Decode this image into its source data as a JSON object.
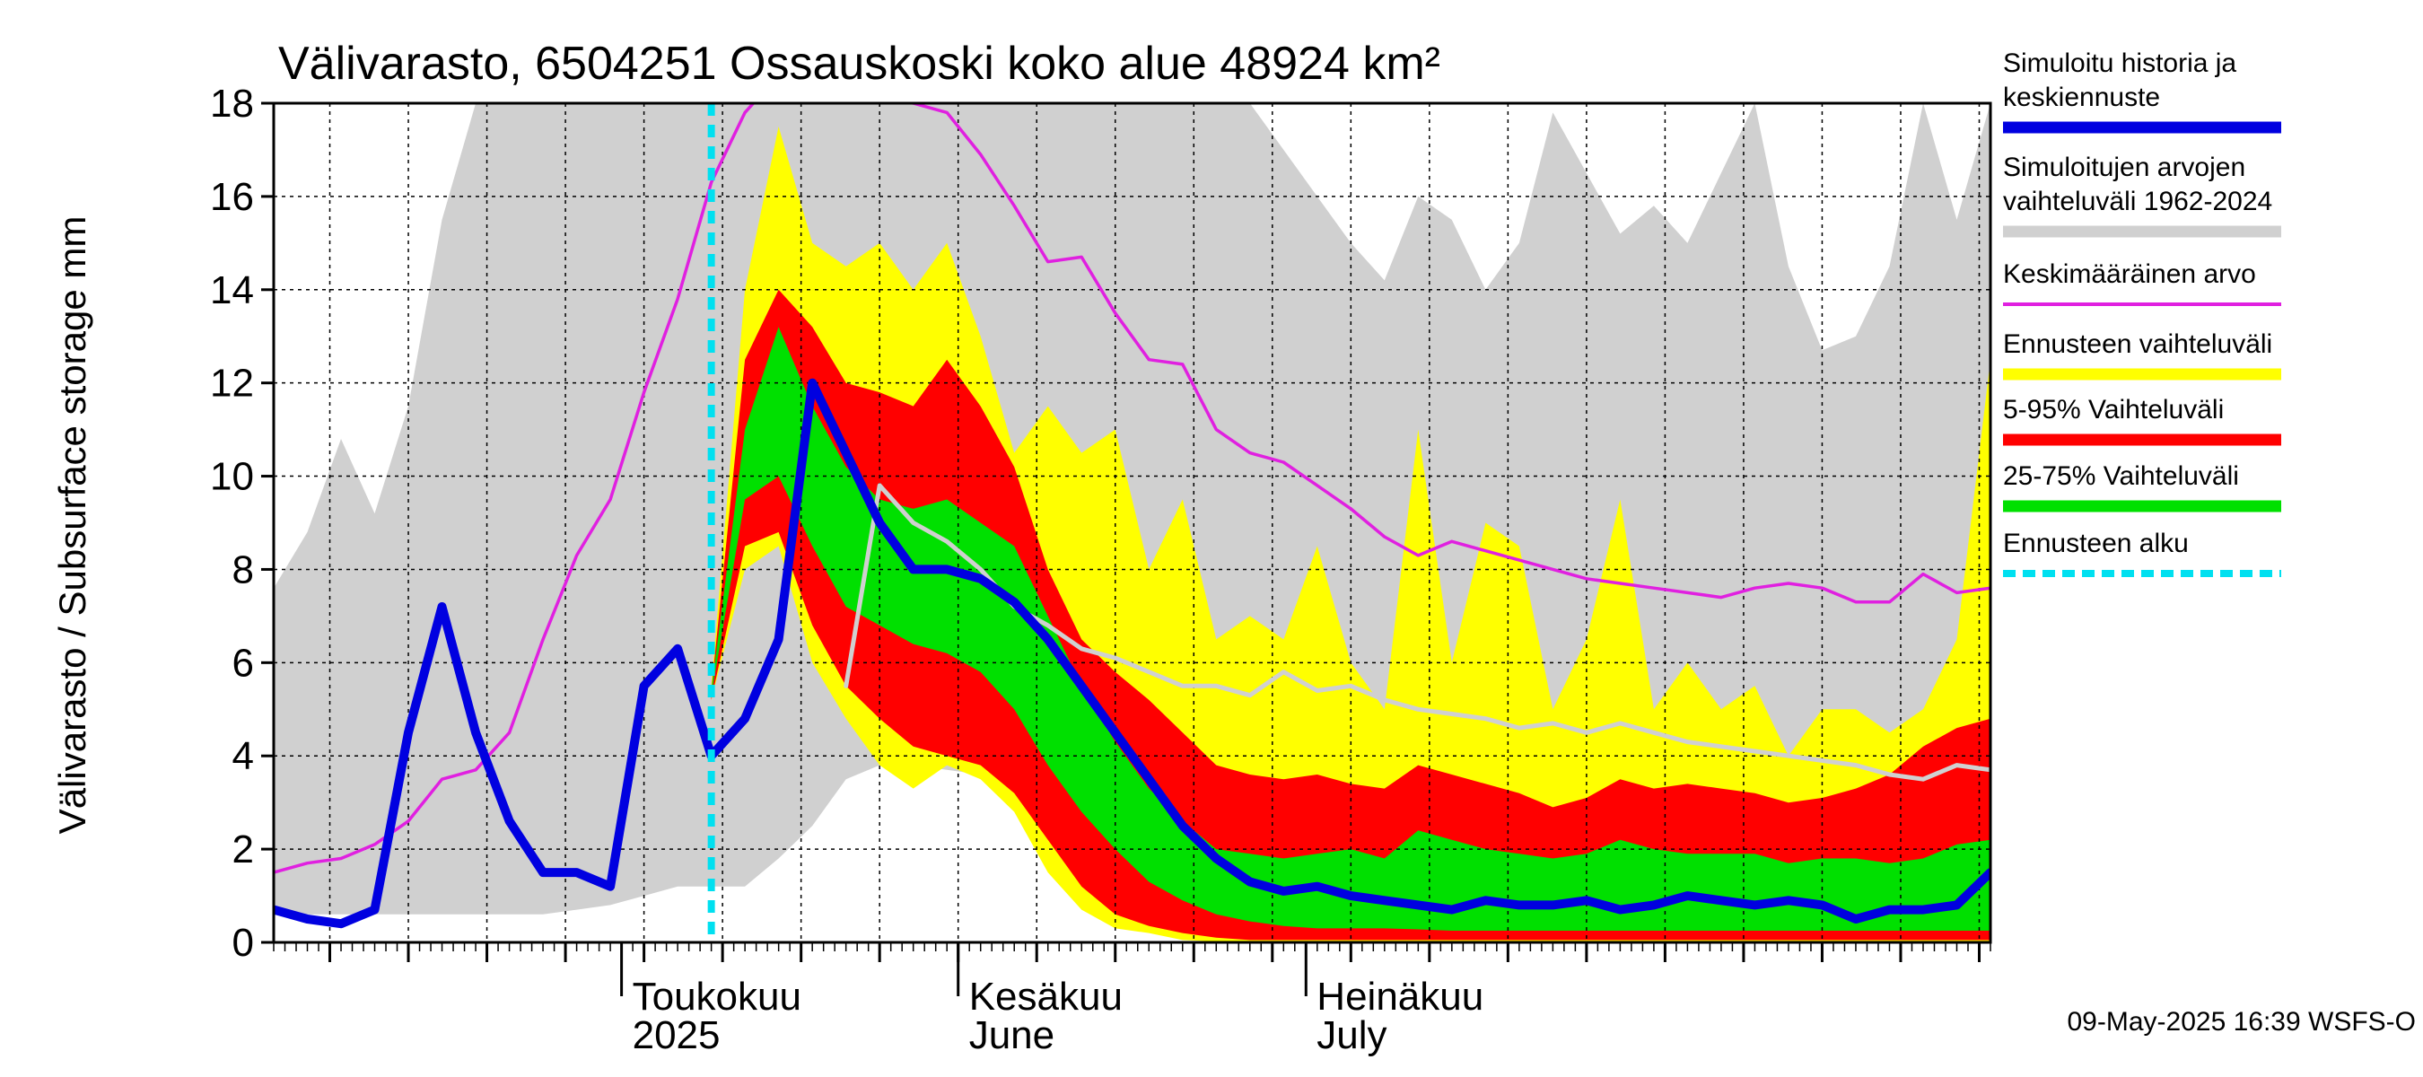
{
  "chart_data": {
    "type": "area",
    "title": "Välivarasto, 6504251 Ossauskoski koko alue 48924 km²",
    "ylabel": "Välivarasto / Subsurface storage  mm",
    "xlabel": "",
    "ylim": [
      0,
      18
    ],
    "xlim": [
      "2025-03-01",
      "2025-08-01"
    ],
    "y_ticks": [
      "0",
      "2",
      "4",
      "6",
      "8",
      "10",
      "12",
      "14",
      "16",
      "18"
    ],
    "x_month_labels": [
      {
        "date": "2025-04-01",
        "line1": "Toukokuu",
        "line2": "2025"
      },
      {
        "date": "2025-05-01",
        "line1": "Kesäkuu",
        "line2": "June"
      },
      {
        "date": "2025-06-01",
        "line1": "Heinäkuu",
        "line2": "July"
      }
    ],
    "forecast_start": "2025-04-09",
    "grid": true,
    "legend_position": "right",
    "legend": [
      {
        "line1": "Simuloitu historia ja",
        "line2": "keskiennuste",
        "color": "#0000e0",
        "style": "thick"
      },
      {
        "line1": "Simuloitujen arvojen",
        "line2": "vaihteluväli 1962-2024",
        "color": "#d0d0d0",
        "style": "thick"
      },
      {
        "line1": "Keskimääräinen arvo",
        "line2": "",
        "color": "#e020e0",
        "style": "thin"
      },
      {
        "line1": "Ennusteen vaihteluväli",
        "line2": "",
        "color": "#ffff00",
        "style": "thick"
      },
      {
        "line1": "5-95% Vaihteluväli",
        "line2": "",
        "color": "#ff0000",
        "style": "thick"
      },
      {
        "line1": "25-75% Vaihteluväli",
        "line2": "",
        "color": "#00e000",
        "style": "thick"
      },
      {
        "line1": "Ennusteen alku",
        "line2": "",
        "color": "#00e0f0",
        "style": "dashed"
      }
    ],
    "colors": {
      "history_range": "#d0d0d0",
      "forecast_range": "#ffff00",
      "p5_95": "#ff0000",
      "p25_75": "#00e000",
      "mean_history": "#e020e0",
      "simulated": "#0000e0",
      "median_history": "#d0d0d0",
      "forecast_start": "#00e0f0"
    },
    "series": {
      "history_range": {
        "dates": [
          "2025-03-01",
          "2025-03-04",
          "2025-03-07",
          "2025-03-10",
          "2025-03-13",
          "2025-03-16",
          "2025-03-19",
          "2025-03-22",
          "2025-03-25",
          "2025-03-28",
          "2025-03-31",
          "2025-04-03",
          "2025-04-06",
          "2025-04-09",
          "2025-04-12",
          "2025-04-15",
          "2025-04-18",
          "2025-04-21",
          "2025-04-24",
          "2025-04-27",
          "2025-04-30",
          "2025-05-03",
          "2025-05-06",
          "2025-05-09",
          "2025-05-12",
          "2025-05-15",
          "2025-05-18",
          "2025-05-21",
          "2025-05-24",
          "2025-05-27",
          "2025-05-30",
          "2025-06-02",
          "2025-06-05",
          "2025-06-08",
          "2025-06-11",
          "2025-06-14",
          "2025-06-17",
          "2025-06-20",
          "2025-06-23",
          "2025-06-26",
          "2025-06-29",
          "2025-07-02",
          "2025-07-05",
          "2025-07-08",
          "2025-07-11",
          "2025-07-14",
          "2025-07-17",
          "2025-07-20",
          "2025-07-23",
          "2025-07-26",
          "2025-07-29",
          "2025-08-01"
        ],
        "lower": [
          0.6,
          0.6,
          0.6,
          0.6,
          0.6,
          0.6,
          0.6,
          0.6,
          0.6,
          0.7,
          0.8,
          1.0,
          1.2,
          1.2,
          1.2,
          1.8,
          2.5,
          3.5,
          3.8,
          3.8,
          3.7,
          3.6,
          3.0,
          2.0,
          1.0,
          0.6,
          0.3,
          0.2,
          0.1,
          0.1,
          0.1,
          0.1,
          0.05,
          0.05,
          0.05,
          0.05,
          0.05,
          0.05,
          0.05,
          0.05,
          0.05,
          0.05,
          0.05,
          0.05,
          0.05,
          0.05,
          0.05,
          0.05,
          0.05,
          0.05,
          0.05,
          0.05
        ],
        "upper": [
          7.6,
          8.8,
          10.8,
          9.2,
          11.5,
          15.5,
          18,
          18,
          18,
          18,
          18,
          18,
          18,
          18,
          18,
          18,
          18,
          18,
          18,
          18,
          18,
          18,
          18,
          18,
          18,
          18,
          18,
          18,
          18,
          18,
          17,
          16,
          15,
          14.2,
          16,
          15.5,
          14,
          15,
          17.8,
          16.5,
          15.2,
          15.8,
          15,
          16.5,
          18,
          14.5,
          12.7,
          13,
          14.5,
          18,
          15.5,
          18
        ]
      },
      "forecast_range": {
        "dates": [
          "2025-04-09",
          "2025-04-12",
          "2025-04-15",
          "2025-04-18",
          "2025-04-21",
          "2025-04-24",
          "2025-04-27",
          "2025-04-30",
          "2025-05-03",
          "2025-05-06",
          "2025-05-09",
          "2025-05-12",
          "2025-05-15",
          "2025-05-18",
          "2025-05-21",
          "2025-05-24",
          "2025-05-27",
          "2025-05-30",
          "2025-06-02",
          "2025-06-05",
          "2025-06-08",
          "2025-06-11",
          "2025-06-14",
          "2025-06-17",
          "2025-06-20",
          "2025-06-23",
          "2025-06-26",
          "2025-06-29",
          "2025-07-02",
          "2025-07-05",
          "2025-07-08",
          "2025-07-11",
          "2025-07-14",
          "2025-07-17",
          "2025-07-20",
          "2025-07-23",
          "2025-07-26",
          "2025-07-29",
          "2025-08-01"
        ],
        "lower": [
          5.2,
          8,
          8.5,
          6,
          4.8,
          3.8,
          3.3,
          3.8,
          3.5,
          2.8,
          1.5,
          0.7,
          0.3,
          0.2,
          0.05,
          0.02,
          0,
          0,
          0,
          0,
          0,
          0,
          0,
          0,
          0,
          0,
          0,
          0,
          0,
          0,
          0,
          0,
          0,
          0,
          0,
          0,
          0,
          0,
          0
        ],
        "upper": [
          5.5,
          14,
          17.5,
          15,
          14.5,
          15,
          14,
          15,
          13,
          10.5,
          11.5,
          10.5,
          11,
          8,
          9.5,
          6.5,
          7,
          6.5,
          8.5,
          6,
          5,
          11,
          6,
          9,
          8.5,
          5,
          6.5,
          9.5,
          5,
          6,
          5,
          5.5,
          4,
          5,
          5,
          4.5,
          5,
          6.5,
          12.5
        ]
      },
      "p5_95": {
        "dates": [
          "2025-04-09",
          "2025-04-12",
          "2025-04-15",
          "2025-04-18",
          "2025-04-21",
          "2025-04-24",
          "2025-04-27",
          "2025-04-30",
          "2025-05-03",
          "2025-05-06",
          "2025-05-09",
          "2025-05-12",
          "2025-05-15",
          "2025-05-18",
          "2025-05-21",
          "2025-05-24",
          "2025-05-27",
          "2025-05-30",
          "2025-06-02",
          "2025-06-05",
          "2025-06-08",
          "2025-06-11",
          "2025-06-14",
          "2025-06-17",
          "2025-06-20",
          "2025-06-23",
          "2025-06-26",
          "2025-06-29",
          "2025-07-02",
          "2025-07-05",
          "2025-07-08",
          "2025-07-11",
          "2025-07-14",
          "2025-07-17",
          "2025-07-20",
          "2025-07-23",
          "2025-07-26",
          "2025-07-29",
          "2025-08-01"
        ],
        "lower": [
          5.2,
          8.5,
          8.8,
          6.8,
          5.5,
          4.8,
          4.2,
          4.0,
          3.8,
          3.2,
          2.2,
          1.2,
          0.6,
          0.35,
          0.2,
          0.1,
          0.05,
          0.05,
          0.05,
          0.05,
          0.05,
          0.05,
          0.05,
          0.05,
          0.05,
          0.05,
          0.05,
          0.05,
          0.05,
          0.05,
          0.05,
          0.05,
          0.05,
          0.05,
          0.05,
          0.05,
          0.05,
          0.05,
          0.05
        ],
        "upper": [
          5.4,
          12.5,
          14,
          13.2,
          12,
          11.8,
          11.5,
          12.5,
          11.5,
          10.2,
          8,
          6.5,
          5.8,
          5.2,
          4.5,
          3.8,
          3.6,
          3.5,
          3.6,
          3.4,
          3.3,
          3.8,
          3.6,
          3.4,
          3.2,
          2.9,
          3.1,
          3.5,
          3.3,
          3.4,
          3.3,
          3.2,
          3.0,
          3.1,
          3.3,
          3.6,
          4.2,
          4.6,
          4.8
        ]
      },
      "p25_75": {
        "dates": [
          "2025-04-09",
          "2025-04-12",
          "2025-04-15",
          "2025-04-18",
          "2025-04-21",
          "2025-04-24",
          "2025-04-27",
          "2025-04-30",
          "2025-05-03",
          "2025-05-06",
          "2025-05-09",
          "2025-05-12",
          "2025-05-15",
          "2025-05-18",
          "2025-05-21",
          "2025-05-24",
          "2025-05-27",
          "2025-05-30",
          "2025-06-02",
          "2025-06-05",
          "2025-06-08",
          "2025-06-11",
          "2025-06-14",
          "2025-06-17",
          "2025-06-20",
          "2025-06-23",
          "2025-06-26",
          "2025-06-29",
          "2025-07-02",
          "2025-07-05",
          "2025-07-08",
          "2025-07-11",
          "2025-07-14",
          "2025-07-17",
          "2025-07-20",
          "2025-07-23",
          "2025-07-26",
          "2025-07-29",
          "2025-08-01"
        ],
        "lower": [
          5.3,
          9.5,
          10,
          8.5,
          7.2,
          6.8,
          6.4,
          6.2,
          5.8,
          5.0,
          3.8,
          2.8,
          2.0,
          1.3,
          0.9,
          0.6,
          0.45,
          0.35,
          0.3,
          0.3,
          0.3,
          0.28,
          0.25,
          0.25,
          0.25,
          0.25,
          0.25,
          0.25,
          0.25,
          0.25,
          0.25,
          0.25,
          0.25,
          0.25,
          0.25,
          0.25,
          0.25,
          0.25,
          0.25
        ],
        "upper": [
          5.4,
          11,
          13.2,
          11.5,
          10.2,
          9.5,
          9.3,
          9.5,
          9.0,
          8.5,
          7.0,
          5.5,
          4.3,
          3.3,
          2.6,
          2.0,
          1.9,
          1.8,
          1.9,
          2.0,
          1.8,
          2.4,
          2.2,
          2.0,
          1.9,
          1.8,
          1.9,
          2.2,
          2.0,
          1.9,
          1.9,
          1.9,
          1.7,
          1.8,
          1.8,
          1.7,
          1.8,
          2.1,
          2.2
        ]
      },
      "mean_history": {
        "dates": [
          "2025-03-01",
          "2025-03-04",
          "2025-03-07",
          "2025-03-10",
          "2025-03-13",
          "2025-03-16",
          "2025-03-19",
          "2025-03-22",
          "2025-03-25",
          "2025-03-28",
          "2025-03-31",
          "2025-04-03",
          "2025-04-06",
          "2025-04-09",
          "2025-04-12",
          "2025-04-15",
          "2025-04-18",
          "2025-04-21",
          "2025-04-24",
          "2025-04-27",
          "2025-04-30",
          "2025-05-03",
          "2025-05-06",
          "2025-05-09",
          "2025-05-12",
          "2025-05-15",
          "2025-05-18",
          "2025-05-21",
          "2025-05-24",
          "2025-05-27",
          "2025-05-30",
          "2025-06-02",
          "2025-06-05",
          "2025-06-08",
          "2025-06-11",
          "2025-06-14",
          "2025-06-17",
          "2025-06-20",
          "2025-06-23",
          "2025-06-26",
          "2025-06-29",
          "2025-07-02",
          "2025-07-05",
          "2025-07-08",
          "2025-07-11",
          "2025-07-14",
          "2025-07-17",
          "2025-07-20",
          "2025-07-23",
          "2025-07-26",
          "2025-07-29",
          "2025-08-01"
        ],
        "values": [
          1.5,
          1.7,
          1.8,
          2.1,
          2.6,
          3.5,
          3.7,
          4.5,
          6.5,
          8.3,
          9.5,
          11.8,
          13.8,
          16.3,
          17.8,
          18.6,
          18.4,
          18.2,
          18.1,
          18.0,
          17.8,
          16.9,
          15.8,
          14.6,
          14.7,
          13.5,
          12.5,
          12.4,
          11.0,
          10.5,
          10.3,
          9.8,
          9.3,
          8.7,
          8.3,
          8.6,
          8.4,
          8.2,
          8.0,
          7.8,
          7.7,
          7.6,
          7.5,
          7.4,
          7.6,
          7.7,
          7.6,
          7.3,
          7.3,
          7.9,
          7.5,
          7.6
        ]
      },
      "median_history": {
        "dates": [
          "2025-04-21",
          "2025-04-24",
          "2025-04-27",
          "2025-04-30",
          "2025-05-03",
          "2025-05-06",
          "2025-05-09",
          "2025-05-12",
          "2025-05-15",
          "2025-05-18",
          "2025-05-21",
          "2025-05-24",
          "2025-05-27",
          "2025-05-30",
          "2025-06-02",
          "2025-06-05",
          "2025-06-08",
          "2025-06-11",
          "2025-06-14",
          "2025-06-17",
          "2025-06-20",
          "2025-06-23",
          "2025-06-26",
          "2025-06-29",
          "2025-07-02",
          "2025-07-05",
          "2025-07-08",
          "2025-07-11",
          "2025-07-14",
          "2025-07-17",
          "2025-07-20",
          "2025-07-23",
          "2025-07-26",
          "2025-07-29",
          "2025-08-01"
        ],
        "values": [
          5.5,
          9.8,
          9.0,
          8.6,
          8.0,
          7.2,
          6.8,
          6.3,
          6.1,
          5.8,
          5.5,
          5.5,
          5.3,
          5.8,
          5.4,
          5.5,
          5.2,
          5.0,
          4.9,
          4.8,
          4.6,
          4.7,
          4.5,
          4.7,
          4.5,
          4.3,
          4.2,
          4.1,
          4.0,
          3.9,
          3.8,
          3.6,
          3.5,
          3.8,
          3.7
        ]
      },
      "simulated": {
        "dates": [
          "2025-03-01",
          "2025-03-04",
          "2025-03-07",
          "2025-03-10",
          "2025-03-13",
          "2025-03-16",
          "2025-03-19",
          "2025-03-22",
          "2025-03-25",
          "2025-03-28",
          "2025-03-31",
          "2025-04-03",
          "2025-04-06",
          "2025-04-09",
          "2025-04-12",
          "2025-04-15",
          "2025-04-18",
          "2025-04-21",
          "2025-04-24",
          "2025-04-27",
          "2025-04-30",
          "2025-05-03",
          "2025-05-06",
          "2025-05-09",
          "2025-05-12",
          "2025-05-15",
          "2025-05-18",
          "2025-05-21",
          "2025-05-24",
          "2025-05-27",
          "2025-05-30",
          "2025-06-02",
          "2025-06-05",
          "2025-06-08",
          "2025-06-11",
          "2025-06-14",
          "2025-06-17",
          "2025-06-20",
          "2025-06-23",
          "2025-06-26",
          "2025-06-29",
          "2025-07-02",
          "2025-07-05",
          "2025-07-08",
          "2025-07-11",
          "2025-07-14",
          "2025-07-17",
          "2025-07-20",
          "2025-07-23",
          "2025-07-26",
          "2025-07-29",
          "2025-08-01"
        ],
        "values": [
          0.7,
          0.5,
          0.4,
          0.7,
          4.5,
          7.2,
          4.5,
          2.6,
          1.5,
          1.5,
          1.2,
          5.5,
          6.3,
          4.0,
          4.8,
          6.5,
          12.0,
          10.5,
          9.0,
          8.0,
          8.0,
          7.8,
          7.3,
          6.5,
          5.5,
          4.5,
          3.5,
          2.5,
          1.8,
          1.3,
          1.1,
          1.2,
          1.0,
          0.9,
          0.8,
          0.7,
          0.9,
          0.8,
          0.8,
          0.9,
          0.7,
          0.8,
          1.0,
          0.9,
          0.8,
          0.9,
          0.8,
          0.5,
          0.7,
          0.7,
          0.8,
          1.5
        ]
      }
    }
  },
  "timestamp": "09-May-2025 16:39 WSFS-O"
}
